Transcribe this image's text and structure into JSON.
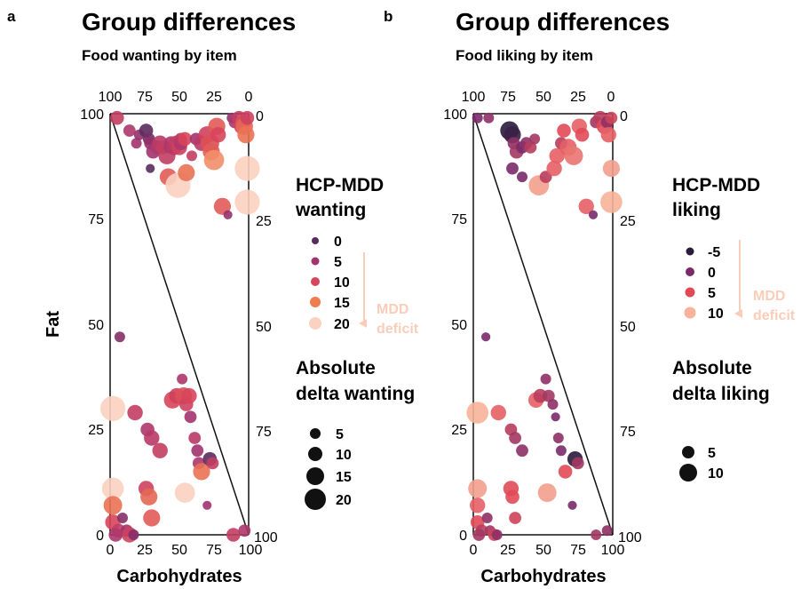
{
  "panels": [
    {
      "label": "a",
      "title": "Group differences",
      "subtitle": "Food wanting by item",
      "chart_data": {
        "type": "scatter",
        "title": "Group differences",
        "subtitle": "Food wanting by item",
        "xlabel": "Carbohydrates",
        "ylabel": "Fat",
        "xlim": [
          0,
          100
        ],
        "ylim": [
          0,
          100
        ],
        "x_ticks": [
          "0",
          "25",
          "50",
          "75",
          "100"
        ],
        "y_ticks": [
          "0",
          "25",
          "50",
          "75",
          "100"
        ],
        "top_ticks": [
          "100",
          "75",
          "50",
          "25",
          "0"
        ],
        "right_ticks": [
          "0",
          "25",
          "50",
          "75",
          "100"
        ],
        "grid": false,
        "legend_position": "right",
        "color_legend": {
          "title": "HCP-MDD wanting",
          "title_lines": [
            "HCP-MDD",
            "wanting"
          ],
          "entries": [
            {
              "label": "0",
              "color": "#5a2b5e"
            },
            {
              "label": "5",
              "color": "#a2336f"
            },
            {
              "label": "10",
              "color": "#d8455a"
            },
            {
              "label": "15",
              "color": "#ef7d52"
            },
            {
              "label": "20",
              "color": "#fbd2c0"
            }
          ],
          "arrow_label": [
            "MDD",
            "deficit"
          ]
        },
        "size_legend": {
          "title": "Absolute delta wanting",
          "title_lines": [
            "Absolute",
            "delta wanting"
          ],
          "entries": [
            "5",
            "10",
            "15",
            "20"
          ]
        },
        "points": [
          {
            "x": 5,
            "y": 99,
            "d": 8,
            "s": 7
          },
          {
            "x": 14,
            "y": 96,
            "d": 6,
            "s": 6
          },
          {
            "x": 19,
            "y": 93,
            "d": 5,
            "s": 5
          },
          {
            "x": 21,
            "y": 95,
            "d": 4,
            "s": 5
          },
          {
            "x": 26,
            "y": 96,
            "d": 0,
            "s": 7
          },
          {
            "x": 28,
            "y": 94,
            "d": 2,
            "s": 6
          },
          {
            "x": 29,
            "y": 93,
            "d": 4,
            "s": 6
          },
          {
            "x": 31,
            "y": 91,
            "d": 5,
            "s": 7
          },
          {
            "x": 34,
            "y": 92,
            "d": 6,
            "s": 7
          },
          {
            "x": 36,
            "y": 93,
            "d": 7,
            "s": 8
          },
          {
            "x": 38,
            "y": 92,
            "d": 8,
            "s": 7
          },
          {
            "x": 41,
            "y": 90,
            "d": 8,
            "s": 9
          },
          {
            "x": 43,
            "y": 92,
            "d": 6,
            "s": 6
          },
          {
            "x": 44,
            "y": 93,
            "d": 6,
            "s": 7
          },
          {
            "x": 42,
            "y": 85,
            "d": 12,
            "s": 9
          },
          {
            "x": 46,
            "y": 92,
            "d": 7,
            "s": 8
          },
          {
            "x": 48,
            "y": 93,
            "d": 8,
            "s": 8
          },
          {
            "x": 50,
            "y": 92,
            "d": 9,
            "s": 8
          },
          {
            "x": 51,
            "y": 93,
            "d": 6,
            "s": 7
          },
          {
            "x": 51,
            "y": 94,
            "d": 7,
            "s": 6
          },
          {
            "x": 54,
            "y": 94,
            "d": 10,
            "s": 7
          },
          {
            "x": 49,
            "y": 83,
            "d": 20,
            "s": 14
          },
          {
            "x": 55,
            "y": 86,
            "d": 14,
            "s": 9
          },
          {
            "x": 59,
            "y": 90,
            "d": 8,
            "s": 5
          },
          {
            "x": 62,
            "y": 94,
            "d": 5,
            "s": 6
          },
          {
            "x": 66,
            "y": 93,
            "d": 7,
            "s": 8
          },
          {
            "x": 70,
            "y": 95,
            "d": 9,
            "s": 9
          },
          {
            "x": 72,
            "y": 93,
            "d": 11,
            "s": 10
          },
          {
            "x": 73,
            "y": 91,
            "d": 12,
            "s": 9
          },
          {
            "x": 75,
            "y": 89,
            "d": 16,
            "s": 11
          },
          {
            "x": 77,
            "y": 97,
            "d": 12,
            "s": 9
          },
          {
            "x": 78,
            "y": 95,
            "d": 10,
            "s": 8
          },
          {
            "x": 81,
            "y": 78,
            "d": 12,
            "s": 9
          },
          {
            "x": 85,
            "y": 76,
            "d": 4,
            "s": 4
          },
          {
            "x": 88,
            "y": 99,
            "d": 4,
            "s": 5
          },
          {
            "x": 90,
            "y": 98,
            "d": 6,
            "s": 6
          },
          {
            "x": 93,
            "y": 99,
            "d": 8,
            "s": 7
          },
          {
            "x": 95,
            "y": 97,
            "d": 10,
            "s": 8
          },
          {
            "x": 96,
            "y": 98,
            "d": 11,
            "s": 8
          },
          {
            "x": 97,
            "y": 97,
            "d": 13,
            "s": 9
          },
          {
            "x": 98,
            "y": 95,
            "d": 14,
            "s": 9
          },
          {
            "x": 99,
            "y": 99,
            "d": 9,
            "s": 7
          },
          {
            "x": 99,
            "y": 87,
            "d": 20,
            "s": 14
          },
          {
            "x": 99,
            "y": 79,
            "d": 20,
            "s": 14
          },
          {
            "x": 29,
            "y": 87,
            "d": 0,
            "s": 4
          },
          {
            "x": 7,
            "y": 47,
            "d": 3,
            "s": 5
          },
          {
            "x": 2,
            "y": 30,
            "d": 20,
            "s": 14
          },
          {
            "x": 18,
            "y": 29,
            "d": 8,
            "s": 8
          },
          {
            "x": 27,
            "y": 25,
            "d": 6,
            "s": 7
          },
          {
            "x": 30,
            "y": 23,
            "d": 7,
            "s": 8
          },
          {
            "x": 36,
            "y": 20,
            "d": 8,
            "s": 8
          },
          {
            "x": 45,
            "y": 32,
            "d": 10,
            "s": 9
          },
          {
            "x": 48,
            "y": 33,
            "d": 9,
            "s": 8
          },
          {
            "x": 52,
            "y": 37,
            "d": 6,
            "s": 5
          },
          {
            "x": 53,
            "y": 33,
            "d": 11,
            "s": 9
          },
          {
            "x": 55,
            "y": 31,
            "d": 9,
            "s": 7
          },
          {
            "x": 57,
            "y": 33,
            "d": 10,
            "s": 8
          },
          {
            "x": 58,
            "y": 28,
            "d": 5,
            "s": 6
          },
          {
            "x": 61,
            "y": 23,
            "d": 7,
            "s": 6
          },
          {
            "x": 63,
            "y": 20,
            "d": 5,
            "s": 6
          },
          {
            "x": 64,
            "y": 17,
            "d": 6,
            "s": 6
          },
          {
            "x": 66,
            "y": 15,
            "d": 14,
            "s": 9
          },
          {
            "x": 72,
            "y": 18,
            "d": 0,
            "s": 7
          },
          {
            "x": 74,
            "y": 17,
            "d": 8,
            "s": 6
          },
          {
            "x": 70,
            "y": 7,
            "d": 5,
            "s": 4
          },
          {
            "x": 54,
            "y": 10,
            "d": 20,
            "s": 11
          },
          {
            "x": 26,
            "y": 11,
            "d": 9,
            "s": 8
          },
          {
            "x": 28,
            "y": 9,
            "d": 13,
            "s": 9
          },
          {
            "x": 30,
            "y": 4,
            "d": 12,
            "s": 9
          },
          {
            "x": 2,
            "y": 11,
            "d": 20,
            "s": 12
          },
          {
            "x": 2,
            "y": 7,
            "d": 14,
            "s": 10
          },
          {
            "x": 2,
            "y": 3,
            "d": 10,
            "s": 8
          },
          {
            "x": 6,
            "y": 1,
            "d": 8,
            "s": 7
          },
          {
            "x": 9,
            "y": 4,
            "d": 3,
            "s": 5
          },
          {
            "x": 12,
            "y": 1,
            "d": 5,
            "s": 6
          },
          {
            "x": 14,
            "y": 0,
            "d": 9,
            "s": 8
          },
          {
            "x": 4,
            "y": 0,
            "d": 6,
            "s": 7
          },
          {
            "x": 17,
            "y": 0,
            "d": 3,
            "s": 5
          },
          {
            "x": 89,
            "y": 0,
            "d": 8,
            "s": 7
          },
          {
            "x": 97,
            "y": 1,
            "d": 6,
            "s": 6
          }
        ]
      }
    },
    {
      "label": "b",
      "title": "Group differences",
      "subtitle": "Food liking by item",
      "chart_data": {
        "type": "scatter",
        "title": "Group differences",
        "subtitle": "Food liking by item",
        "xlabel": "Carbohydrates",
        "ylabel": "",
        "xlim": [
          0,
          100
        ],
        "ylim": [
          0,
          100
        ],
        "x_ticks": [
          "0",
          "25",
          "50",
          "75",
          "100"
        ],
        "y_ticks": [
          "0",
          "25",
          "50",
          "75",
          "100"
        ],
        "top_ticks": [
          "100",
          "75",
          "50",
          "25",
          "0"
        ],
        "right_ticks": [
          "0",
          "25",
          "50",
          "75",
          "100"
        ],
        "grid": false,
        "legend_position": "right",
        "color_legend": {
          "title": "HCP-MDD liking",
          "title_lines": [
            "HCP-MDD",
            "liking"
          ],
          "entries": [
            {
              "label": "-5",
              "color": "#2a1c3c"
            },
            {
              "label": "0",
              "color": "#7a2a6a"
            },
            {
              "label": "5",
              "color": "#e04a56"
            },
            {
              "label": "10",
              "color": "#f8b39a"
            }
          ],
          "arrow_label": [
            "MDD",
            "deficit"
          ]
        },
        "size_legend": {
          "title": "Absolute delta liking",
          "title_lines": [
            "Absolute",
            "delta liking"
          ],
          "entries": [
            "5",
            "10"
          ]
        },
        "points": [
          {
            "x": 3,
            "y": 99,
            "d": 0,
            "s": 5
          },
          {
            "x": 11,
            "y": 99,
            "d": 1,
            "s": 5
          },
          {
            "x": 26,
            "y": 96,
            "d": -5,
            "s": 10
          },
          {
            "x": 28,
            "y": 95,
            "d": -4,
            "s": 9
          },
          {
            "x": 29,
            "y": 93,
            "d": 1,
            "s": 6
          },
          {
            "x": 31,
            "y": 91,
            "d": 2,
            "s": 7
          },
          {
            "x": 35,
            "y": 92,
            "d": 0,
            "s": 6
          },
          {
            "x": 38,
            "y": 93,
            "d": 1,
            "s": 6
          },
          {
            "x": 41,
            "y": 92,
            "d": 3,
            "s": 6
          },
          {
            "x": 44,
            "y": 94,
            "d": 2,
            "s": 5
          },
          {
            "x": 28,
            "y": 87,
            "d": 0,
            "s": 6
          },
          {
            "x": 35,
            "y": 85,
            "d": 0,
            "s": 5
          },
          {
            "x": 47,
            "y": 83,
            "d": 9,
            "s": 11
          },
          {
            "x": 52,
            "y": 85,
            "d": 3,
            "s": 6
          },
          {
            "x": 58,
            "y": 87,
            "d": 6,
            "s": 8
          },
          {
            "x": 60,
            "y": 90,
            "d": 6,
            "s": 8
          },
          {
            "x": 63,
            "y": 93,
            "d": 3,
            "s": 6
          },
          {
            "x": 65,
            "y": 96,
            "d": 5,
            "s": 7
          },
          {
            "x": 68,
            "y": 92,
            "d": 6,
            "s": 9
          },
          {
            "x": 72,
            "y": 90,
            "d": 7,
            "s": 10
          },
          {
            "x": 76,
            "y": 97,
            "d": 6,
            "s": 8
          },
          {
            "x": 78,
            "y": 95,
            "d": 5,
            "s": 7
          },
          {
            "x": 81,
            "y": 78,
            "d": 6,
            "s": 8
          },
          {
            "x": 86,
            "y": 76,
            "d": 0,
            "s": 4
          },
          {
            "x": 88,
            "y": 98,
            "d": 2,
            "s": 6
          },
          {
            "x": 91,
            "y": 99,
            "d": 3,
            "s": 7
          },
          {
            "x": 94,
            "y": 97,
            "d": 5,
            "s": 8
          },
          {
            "x": 96,
            "y": 98,
            "d": 1,
            "s": 6
          },
          {
            "x": 97,
            "y": 95,
            "d": 6,
            "s": 8
          },
          {
            "x": 99,
            "y": 99,
            "d": 4,
            "s": 6
          },
          {
            "x": 99,
            "y": 87,
            "d": 9,
            "s": 9
          },
          {
            "x": 99,
            "y": 79,
            "d": 10,
            "s": 12
          },
          {
            "x": 9,
            "y": 47,
            "d": 0,
            "s": 4
          },
          {
            "x": 3,
            "y": 29,
            "d": 10,
            "s": 12
          },
          {
            "x": 18,
            "y": 29,
            "d": 6,
            "s": 8
          },
          {
            "x": 27,
            "y": 25,
            "d": 3,
            "s": 6
          },
          {
            "x": 30,
            "y": 23,
            "d": 2,
            "s": 6
          },
          {
            "x": 35,
            "y": 20,
            "d": 1,
            "s": 6
          },
          {
            "x": 45,
            "y": 32,
            "d": 6,
            "s": 8
          },
          {
            "x": 48,
            "y": 33,
            "d": 3,
            "s": 7
          },
          {
            "x": 52,
            "y": 37,
            "d": 1,
            "s": 5
          },
          {
            "x": 54,
            "y": 33,
            "d": 2,
            "s": 6
          },
          {
            "x": 57,
            "y": 31,
            "d": 1,
            "s": 5
          },
          {
            "x": 59,
            "y": 28,
            "d": 0,
            "s": 4
          },
          {
            "x": 61,
            "y": 23,
            "d": 1,
            "s": 5
          },
          {
            "x": 63,
            "y": 20,
            "d": 0,
            "s": 5
          },
          {
            "x": 66,
            "y": 15,
            "d": 5,
            "s": 7
          },
          {
            "x": 73,
            "y": 18,
            "d": -5,
            "s": 8
          },
          {
            "x": 75,
            "y": 17,
            "d": 2,
            "s": 6
          },
          {
            "x": 71,
            "y": 7,
            "d": 0,
            "s": 4
          },
          {
            "x": 53,
            "y": 10,
            "d": 9,
            "s": 10
          },
          {
            "x": 27,
            "y": 11,
            "d": 5,
            "s": 8
          },
          {
            "x": 28,
            "y": 9,
            "d": 5,
            "s": 7
          },
          {
            "x": 30,
            "y": 4,
            "d": 4,
            "s": 6
          },
          {
            "x": 3,
            "y": 11,
            "d": 9,
            "s": 10
          },
          {
            "x": 3,
            "y": 7,
            "d": 6,
            "s": 8
          },
          {
            "x": 3,
            "y": 3,
            "d": 5,
            "s": 7
          },
          {
            "x": 6,
            "y": 1,
            "d": 3,
            "s": 6
          },
          {
            "x": 10,
            "y": 4,
            "d": 1,
            "s": 5
          },
          {
            "x": 12,
            "y": 1,
            "d": 2,
            "s": 5
          },
          {
            "x": 15,
            "y": 0,
            "d": 4,
            "s": 6
          },
          {
            "x": 4,
            "y": 0,
            "d": 2,
            "s": 6
          },
          {
            "x": 17,
            "y": 0,
            "d": 1,
            "s": 5
          },
          {
            "x": 88,
            "y": 0,
            "d": 2,
            "s": 5
          },
          {
            "x": 96,
            "y": 1,
            "d": 1,
            "s": 5
          }
        ]
      }
    }
  ]
}
